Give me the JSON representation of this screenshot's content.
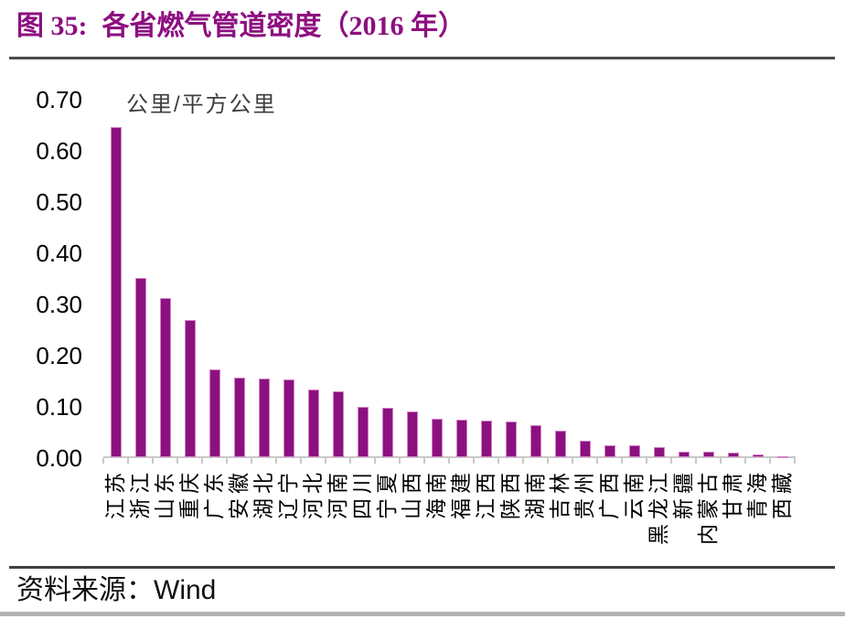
{
  "figure": {
    "label": "图 35:",
    "title": "各省燃气管道密度（2016 年）"
  },
  "source": {
    "prefix": "资料来源：",
    "name": "Wind"
  },
  "colors": {
    "title": "#8D0F80",
    "bar": "#8C1180",
    "bar_edge": "#D383C4",
    "axis": "#C8C8C8"
  },
  "chart_data": {
    "type": "bar",
    "title": "各省燃气管道密度（2016 年）",
    "unit_label": "公里/平方公里",
    "categories": [
      "江苏",
      "浙江",
      "山东",
      "重庆",
      "广东",
      "安徽",
      "湖北",
      "辽宁",
      "河北",
      "河南",
      "四川",
      "宁夏",
      "山西",
      "海南",
      "福建",
      "江西",
      "陕西",
      "湖南",
      "吉林",
      "贵州",
      "广西",
      "云南",
      "黑龙江",
      "新疆",
      "内蒙古",
      "甘肃",
      "青海",
      "西藏"
    ],
    "values": [
      0.645,
      0.35,
      0.31,
      0.268,
      0.171,
      0.155,
      0.153,
      0.152,
      0.132,
      0.129,
      0.098,
      0.096,
      0.089,
      0.075,
      0.073,
      0.071,
      0.069,
      0.062,
      0.052,
      0.032,
      0.023,
      0.023,
      0.02,
      0.011,
      0.011,
      0.009,
      0.005,
      0.002
    ],
    "ylim": [
      0,
      0.7
    ],
    "ytick_labels": [
      "0.70",
      "0.60",
      "0.50",
      "0.40",
      "0.30",
      "0.20",
      "0.10",
      "0.00"
    ],
    "xlabel_rotation": -90,
    "grid": false,
    "legend": "none",
    "bar_color": "#8C1180"
  }
}
